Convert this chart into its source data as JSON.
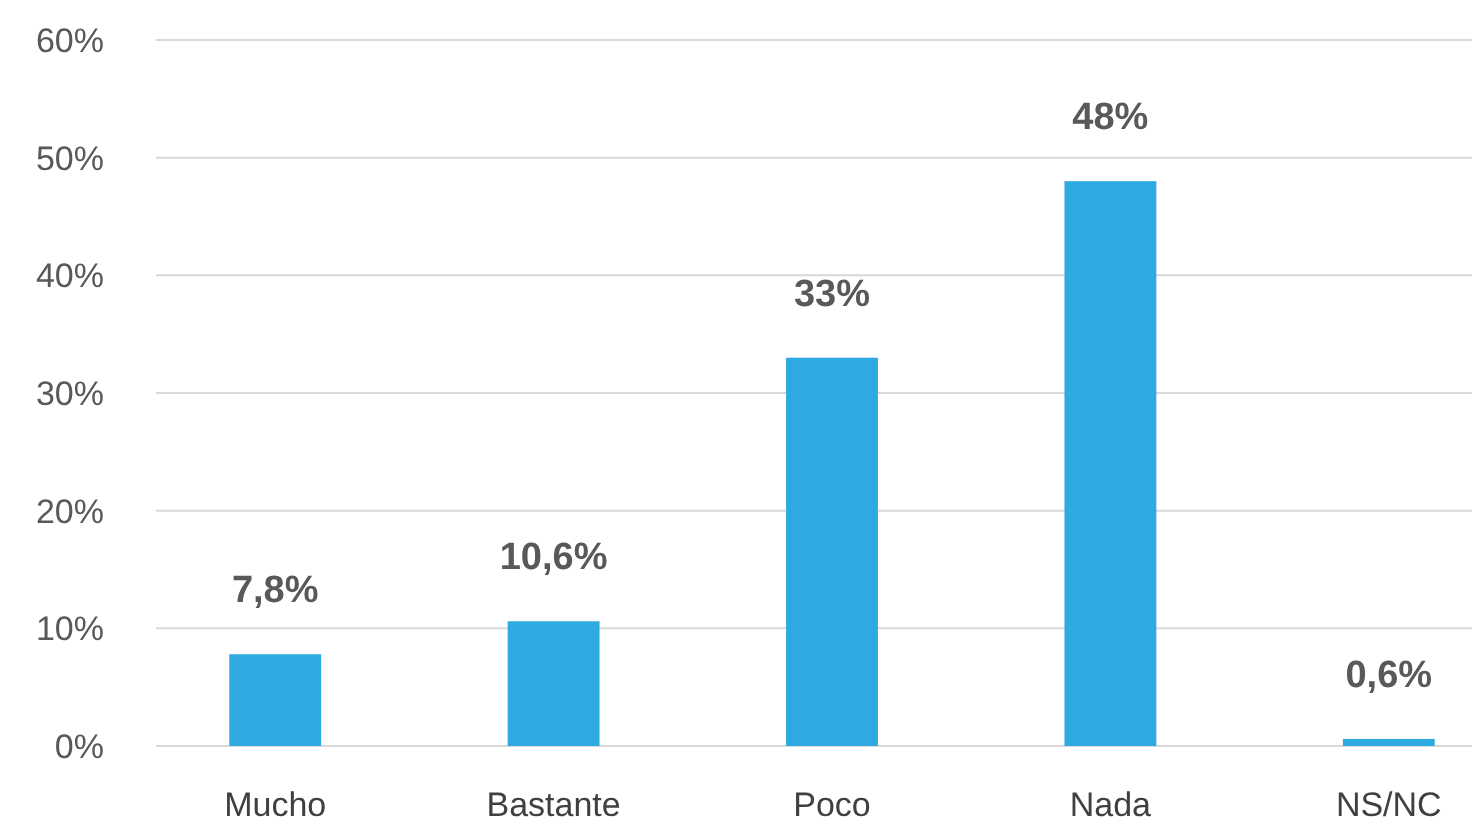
{
  "chart_data": {
    "type": "bar",
    "categories": [
      "Mucho",
      "Bastante",
      "Poco",
      "Nada",
      "NS/NC"
    ],
    "values": [
      7.8,
      10.6,
      33,
      48,
      0.6
    ],
    "value_labels": [
      "7,8%",
      "10,6%",
      "33%",
      "48%",
      "0,6%"
    ],
    "color": "#2eaae1",
    "ylim": [
      0,
      60
    ],
    "yticks": [
      {
        "value": 0,
        "label": "0%"
      },
      {
        "value": 10,
        "label": "10%"
      },
      {
        "value": 20,
        "label": "20%"
      },
      {
        "value": 30,
        "label": "30%"
      },
      {
        "value": 40,
        "label": "40%"
      },
      {
        "value": 50,
        "label": "50%"
      },
      {
        "value": 60,
        "label": "60%"
      }
    ],
    "grid": "y"
  }
}
